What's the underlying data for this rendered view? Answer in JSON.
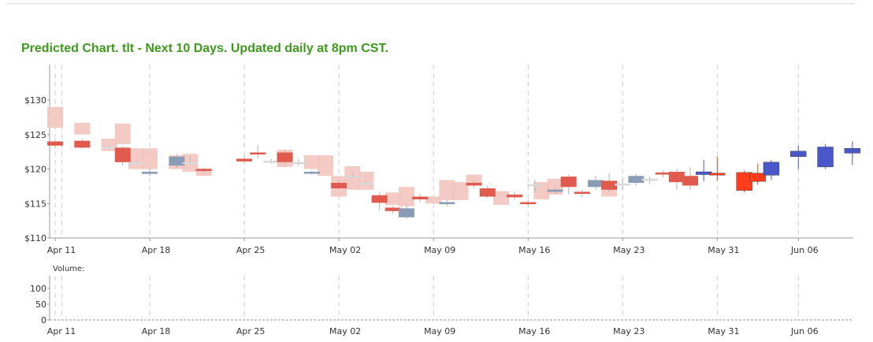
{
  "page": {
    "title": "Predicted Chart. tlt - Next 10 Days. Updated daily at 8pm CST."
  },
  "colors": {
    "title": "#3c9a1c",
    "up": "#e05a4e",
    "down": "#8a9bb5",
    "flat": "#d8d8d8",
    "range_band": "#f2c4be",
    "predicted_up": "#ff3d1a",
    "predicted_down": "#4957c8",
    "axis": "#999999",
    "gridline": "#cccccc"
  },
  "chart_data": [
    {
      "type": "candlestick",
      "title": "Predicted Chart. tlt - Next 10 Days. Updated daily at 8pm CST.",
      "grid": "vertical dashed lines at date ticks",
      "ylim": [
        110,
        135
      ],
      "yticks": [
        "$110",
        "$115",
        "$120",
        "$125",
        "$130"
      ],
      "ytick_values": [
        110,
        115,
        120,
        125,
        130
      ],
      "xticks": [
        "Apr 11",
        "Apr 18",
        "Apr 25",
        "May 02",
        "May 09",
        "May 16",
        "May 23",
        "May 31",
        "Jun 06"
      ],
      "xtick_index": [
        0,
        7,
        14,
        21,
        28,
        35,
        42,
        49,
        55
      ],
      "series": [
        {
          "kind": "range_band",
          "color": "#f2c4be",
          "points": [
            {
              "i": 0,
              "low": 126,
              "high": 129
            },
            {
              "i": 2,
              "low": 125,
              "high": 126.7
            },
            {
              "i": 4,
              "low": 122.6,
              "high": 124.4
            },
            {
              "i": 5,
              "low": 123.6,
              "high": 126.6
            },
            {
              "i": 6,
              "low": 120,
              "high": 123
            },
            {
              "i": 7,
              "low": 120,
              "high": 123
            },
            {
              "i": 9,
              "low": 120,
              "high": 122
            },
            {
              "i": 10,
              "low": 119.6,
              "high": 122.2
            },
            {
              "i": 11,
              "low": 119,
              "high": 120.1
            },
            {
              "i": 17,
              "low": 120.3,
              "high": 122.8
            },
            {
              "i": 19,
              "low": 120,
              "high": 122
            },
            {
              "i": 20,
              "low": 119,
              "high": 122
            },
            {
              "i": 21,
              "low": 116,
              "high": 119
            },
            {
              "i": 22,
              "low": 117,
              "high": 120.4
            },
            {
              "i": 23,
              "low": 117,
              "high": 119.6
            },
            {
              "i": 25,
              "low": 114.8,
              "high": 116.6
            },
            {
              "i": 26,
              "low": 114.6,
              "high": 117.4
            },
            {
              "i": 28,
              "low": 115,
              "high": 116
            },
            {
              "i": 29,
              "low": 115.5,
              "high": 118.4
            },
            {
              "i": 30,
              "low": 115.5,
              "high": 118.1
            },
            {
              "i": 31,
              "low": 118,
              "high": 119.2
            },
            {
              "i": 33,
              "low": 114.8,
              "high": 116.8
            },
            {
              "i": 36,
              "low": 115.6,
              "high": 118.1
            },
            {
              "i": 37,
              "low": 116.3,
              "high": 118.6
            },
            {
              "i": 41,
              "low": 116,
              "high": 117.5
            }
          ]
        },
        {
          "kind": "candles",
          "points": [
            {
              "i": 0,
              "open": 124,
              "close": 123.4,
              "high": 124.3,
              "low": 123,
              "c": "up"
            },
            {
              "i": 2,
              "open": 124.1,
              "close": 123.1,
              "high": 124.4,
              "low": 123,
              "c": "up"
            },
            {
              "i": 4,
              "open": 123.2,
              "close": 123.2,
              "high": 123.5,
              "low": 123,
              "c": "flat"
            },
            {
              "i": 5,
              "open": 123.1,
              "close": 121,
              "high": 123.3,
              "low": 120.5,
              "c": "up"
            },
            {
              "i": 6,
              "open": 121,
              "close": 121,
              "high": 121.3,
              "low": 120.8,
              "c": "flat"
            },
            {
              "i": 7,
              "open": 119.6,
              "close": 119.3,
              "high": 120.1,
              "low": 119,
              "c": "down"
            },
            {
              "i": 9,
              "open": 121.8,
              "close": 120.5,
              "high": 122.2,
              "low": 120.2,
              "c": "down"
            },
            {
              "i": 10,
              "open": 121,
              "close": 121,
              "high": 121.8,
              "low": 120.6,
              "c": "flat"
            },
            {
              "i": 11,
              "open": 120,
              "close": 119.8,
              "high": 120.2,
              "low": 119.5,
              "c": "up"
            },
            {
              "i": 14,
              "open": 121.5,
              "close": 121.1,
              "high": 121.9,
              "low": 121,
              "c": "up"
            },
            {
              "i": 15,
              "open": 122.4,
              "close": 122.4,
              "high": 123.5,
              "low": 121.5,
              "c": "up"
            },
            {
              "i": 16,
              "open": 121.2,
              "close": 121.2,
              "high": 121.5,
              "low": 120.8,
              "c": "flat"
            },
            {
              "i": 17,
              "open": 122.4,
              "close": 121,
              "high": 122.7,
              "low": 120.7,
              "c": "up"
            },
            {
              "i": 18,
              "open": 121,
              "close": 121,
              "high": 121.5,
              "low": 120.5,
              "c": "flat"
            },
            {
              "i": 19,
              "open": 119.6,
              "close": 119.4,
              "high": 119.8,
              "low": 119.2,
              "c": "down"
            },
            {
              "i": 21,
              "open": 118,
              "close": 117.2,
              "high": 118.4,
              "low": 117,
              "c": "up"
            },
            {
              "i": 22,
              "open": 119,
              "close": 119,
              "high": 119.4,
              "low": 118.6,
              "c": "flat"
            },
            {
              "i": 23,
              "open": 118,
              "close": 118,
              "high": 118.3,
              "low": 117.7,
              "c": "flat"
            },
            {
              "i": 24,
              "open": 116.2,
              "close": 115.1,
              "high": 116.6,
              "low": 114,
              "c": "up"
            },
            {
              "i": 25,
              "open": 114.4,
              "close": 113.9,
              "high": 114.7,
              "low": 113.5,
              "c": "up"
            },
            {
              "i": 26,
              "open": 114.3,
              "close": 113,
              "high": 114.8,
              "low": 112.8,
              "c": "down"
            },
            {
              "i": 27,
              "open": 116,
              "close": 115.6,
              "high": 116.4,
              "low": 115.2,
              "c": "up"
            },
            {
              "i": 29,
              "open": 115.2,
              "close": 114.9,
              "high": 115.5,
              "low": 114.6,
              "c": "down"
            },
            {
              "i": 31,
              "open": 118,
              "close": 117.6,
              "high": 118.4,
              "low": 117.2,
              "c": "up"
            },
            {
              "i": 32,
              "open": 117.2,
              "close": 116,
              "high": 117.6,
              "low": 115.8,
              "c": "up"
            },
            {
              "i": 34,
              "open": 116.3,
              "close": 115.9,
              "high": 116.7,
              "low": 115.6,
              "c": "up"
            },
            {
              "i": 35,
              "open": 115.2,
              "close": 114.9,
              "high": 115.5,
              "low": 114.6,
              "c": "up"
            },
            {
              "i": 35.5,
              "open": 117.8,
              "close": 117.8,
              "high": 118.5,
              "low": 116.6,
              "c": "flat"
            },
            {
              "i": 37,
              "open": 117,
              "close": 116.7,
              "high": 117.3,
              "low": 116.4,
              "c": "down"
            },
            {
              "i": 38,
              "open": 118.9,
              "close": 117.4,
              "high": 119.2,
              "low": 116.3,
              "c": "up"
            },
            {
              "i": 39,
              "open": 116.7,
              "close": 116.4,
              "high": 117,
              "low": 115.9,
              "c": "up"
            },
            {
              "i": 40,
              "open": 118.4,
              "close": 117.4,
              "high": 119,
              "low": 117,
              "c": "down"
            },
            {
              "i": 41,
              "open": 118.3,
              "close": 117,
              "high": 119.4,
              "low": 116.7,
              "c": "up"
            },
            {
              "i": 42,
              "open": 117.9,
              "close": 117.9,
              "high": 118.6,
              "low": 117,
              "c": "flat"
            },
            {
              "i": 43,
              "open": 119,
              "close": 118,
              "high": 119.3,
              "low": 117.6,
              "c": "down"
            },
            {
              "i": 44,
              "open": 118.6,
              "close": 118.3,
              "high": 118.9,
              "low": 117.8,
              "c": "flat"
            },
            {
              "i": 45,
              "open": 119.5,
              "close": 119.2,
              "high": 119.8,
              "low": 118.8,
              "c": "up"
            },
            {
              "i": 46,
              "open": 119.6,
              "close": 118.1,
              "high": 120,
              "low": 117,
              "c": "up"
            },
            {
              "i": 47,
              "open": 119,
              "close": 117.6,
              "high": 120.3,
              "low": 117,
              "c": "up"
            },
            {
              "i": 48,
              "open": 119.6,
              "close": 119.2,
              "high": 121.3,
              "low": 118.2,
              "c": "predicted_down"
            },
            {
              "i": 49,
              "open": 119.4,
              "close": 119.3,
              "high": 121.8,
              "low": 118.3,
              "c": "predicted_up"
            },
            {
              "i": 51,
              "open": 119.5,
              "close": 116.9,
              "high": 119.8,
              "low": 116.6,
              "c": "predicted_up"
            },
            {
              "i": 52,
              "open": 119.4,
              "close": 118.2,
              "high": 120.8,
              "low": 117.7,
              "c": "predicted_up"
            },
            {
              "i": 53,
              "open": 121,
              "close": 119.1,
              "high": 121.3,
              "low": 118.4,
              "c": "predicted_down"
            },
            {
              "i": 55,
              "open": 122.6,
              "close": 121.8,
              "high": 123.4,
              "low": 120,
              "c": "predicted_down"
            },
            {
              "i": 57,
              "open": 123.2,
              "close": 120.3,
              "high": 123.6,
              "low": 120,
              "c": "predicted_down"
            },
            {
              "i": 59,
              "open": 123,
              "close": 122.3,
              "high": 124,
              "low": 120.6,
              "c": "predicted_down"
            }
          ]
        }
      ]
    },
    {
      "type": "bar",
      "title": "Volume:",
      "ylim": [
        0,
        140
      ],
      "yticks": [
        "100",
        "50",
        "0"
      ],
      "ytick_values": [
        100,
        50,
        0
      ],
      "xticks": [
        "Apr 11",
        "Apr 18",
        "Apr 25",
        "May 02",
        "May 09",
        "May 16",
        "May 23",
        "May 31",
        "Jun 06"
      ],
      "values": []
    }
  ]
}
